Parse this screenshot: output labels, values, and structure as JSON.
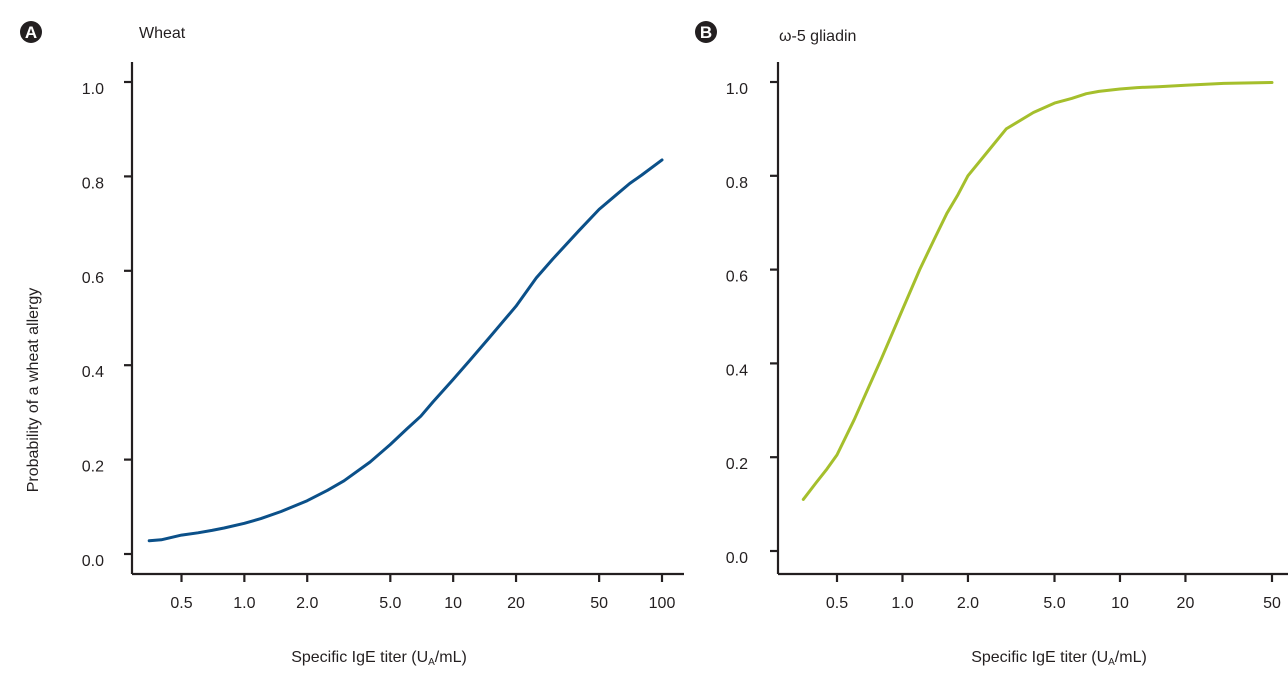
{
  "panels": [
    {
      "badge": "A",
      "title": "Wheat",
      "ylabel": "Probability of a wheat allergy",
      "xlabel": "Specific IgE titer (UA/mL)",
      "yticks": [
        "0.0",
        "0.2",
        "0.4",
        "0.6",
        "0.8",
        "1.0"
      ],
      "xticks": [
        "0.5",
        "1.0",
        "2.0",
        "5.0",
        "10",
        "20",
        "50",
        "100"
      ]
    },
    {
      "badge": "B",
      "title": "ω-5 gliadin",
      "xlabel": "Specific IgE titer (UA/mL)",
      "yticks": [
        "0.0",
        "0.2",
        "0.4",
        "0.6",
        "0.8",
        "1.0"
      ],
      "xticks": [
        "0.5",
        "1.0",
        "2.0",
        "5.0",
        "10",
        "20",
        "50"
      ]
    }
  ],
  "chart_data": [
    {
      "type": "line",
      "title": "Wheat",
      "xlabel": "Specific IgE titer (UA/mL)",
      "ylabel": "Probability of a wheat allergy",
      "x_scale": "log",
      "xlim": [
        0.35,
        100
      ],
      "ylim": [
        0,
        1.0
      ],
      "grid": false,
      "color": "#0b5089",
      "series": [
        {
          "x": [
            0.35,
            0.4,
            0.5,
            0.6,
            0.7,
            0.8,
            1.0,
            1.2,
            1.5,
            2.0,
            2.5,
            3.0,
            4.0,
            5.0,
            6.0,
            7.0,
            8.0,
            10,
            12,
            15,
            20,
            25,
            30,
            40,
            50,
            60,
            70,
            80,
            100
          ],
          "y": [
            0.028,
            0.03,
            0.04,
            0.045,
            0.05,
            0.055,
            0.065,
            0.075,
            0.09,
            0.113,
            0.135,
            0.155,
            0.195,
            0.232,
            0.265,
            0.292,
            0.322,
            0.37,
            0.41,
            0.46,
            0.525,
            0.585,
            0.625,
            0.685,
            0.73,
            0.76,
            0.785,
            0.803,
            0.835
          ]
        }
      ]
    },
    {
      "type": "line",
      "title": "ω-5 gliadin",
      "xlabel": "Specific IgE titer (UA/mL)",
      "x_scale": "log",
      "xlim": [
        0.35,
        55
      ],
      "ylim": [
        0,
        1.0
      ],
      "grid": false,
      "color": "#a5bf2c",
      "series": [
        {
          "x": [
            0.35,
            0.4,
            0.45,
            0.5,
            0.6,
            0.7,
            0.8,
            0.9,
            1.0,
            1.2,
            1.4,
            1.6,
            1.8,
            2.0,
            2.5,
            3.0,
            4.0,
            5.0,
            6.0,
            7.0,
            8.0,
            10,
            12,
            15,
            20,
            30,
            40,
            50
          ],
          "y": [
            0.11,
            0.145,
            0.175,
            0.205,
            0.28,
            0.35,
            0.41,
            0.465,
            0.515,
            0.6,
            0.665,
            0.72,
            0.76,
            0.8,
            0.855,
            0.9,
            0.935,
            0.955,
            0.965,
            0.975,
            0.98,
            0.985,
            0.988,
            0.99,
            0.993,
            0.997,
            0.998,
            0.999
          ]
        }
      ]
    }
  ]
}
